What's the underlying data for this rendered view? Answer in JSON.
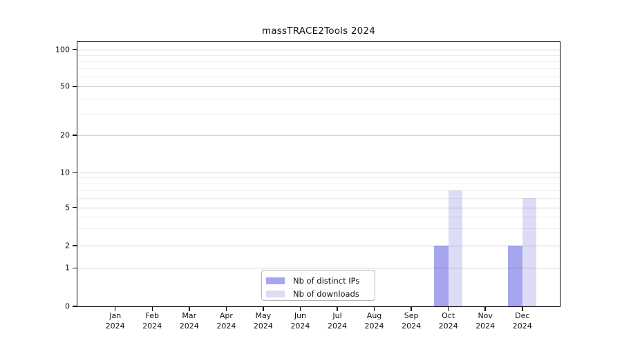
{
  "chart_data": {
    "type": "bar",
    "title": "massTRACE2Tools 2024",
    "x": {
      "categories": [
        "Jan",
        "Feb",
        "Mar",
        "Apr",
        "May",
        "Jun",
        "Jul",
        "Aug",
        "Sep",
        "Oct",
        "Nov",
        "Dec"
      ],
      "year": "2024"
    },
    "series": [
      {
        "name": "Nb of distinct IPs",
        "color": "#a6a6ef",
        "values": [
          0,
          0,
          0,
          0,
          0,
          0,
          0,
          0,
          0,
          2,
          0,
          2
        ]
      },
      {
        "name": "Nb of downloads",
        "color": "#dcdcf7",
        "values": [
          0,
          0,
          0,
          0,
          0,
          0,
          0,
          0,
          0,
          7,
          0,
          6
        ]
      }
    ],
    "y_axis": {
      "ticks": [
        0,
        1,
        2,
        5,
        10,
        20,
        50,
        100
      ],
      "minor_gridlines": [
        3,
        4,
        6,
        7,
        8,
        9,
        30,
        40,
        60,
        70,
        80,
        90
      ],
      "scale": "log-like",
      "ylim": [
        0,
        100
      ]
    },
    "legend": {
      "position": "bottom-center-inside",
      "entries": [
        "Nb of distinct IPs",
        "Nb of downloads"
      ]
    },
    "grid": true,
    "colors": {
      "grid_major": "#d0d0d0",
      "grid_minor": "#ececec",
      "axis": "#000000",
      "background": "#ffffff"
    }
  }
}
